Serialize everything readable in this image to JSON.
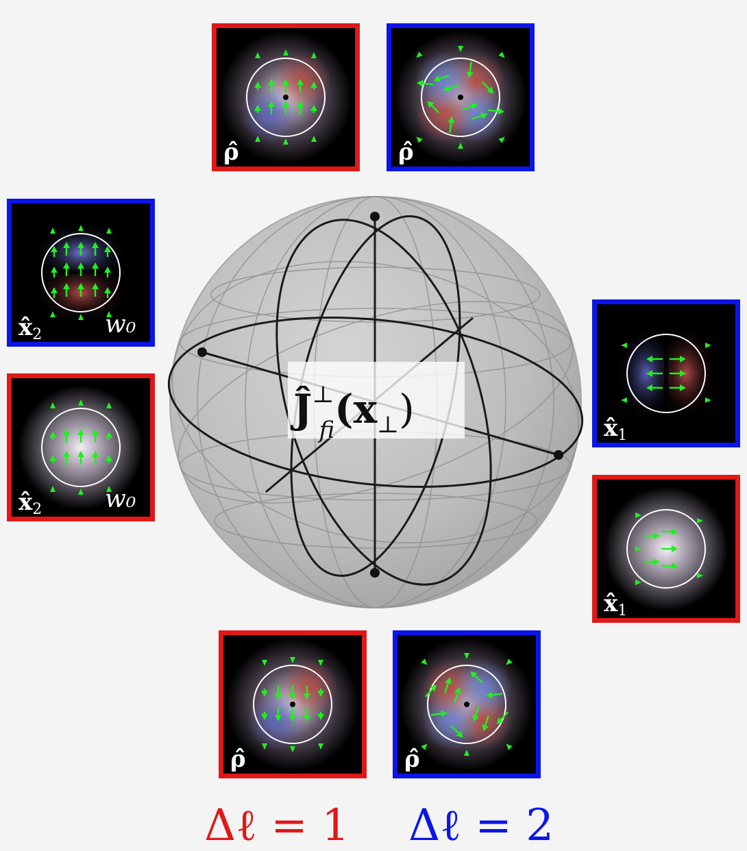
{
  "center_label": {
    "main": "Ĵ",
    "sup": "⊥",
    "sub": "fi",
    "arg_open": "(x",
    "arg_sub": "⊥",
    "arg_close": ")"
  },
  "captions": {
    "delta_l_1": "Δℓ = 1",
    "delta_l_2": "Δℓ = 2"
  },
  "colors": {
    "red": "#e01818",
    "blue": "#0b15e8",
    "arrow": "#22ee22"
  },
  "panels": [
    {
      "id": "top-red",
      "mode": "l1",
      "orient": "up",
      "border": "red",
      "label": "ρ̂",
      "label_sub": "",
      "w0": ""
    },
    {
      "id": "top-blue",
      "mode": "l2",
      "orient": "a",
      "border": "blue",
      "label": "ρ̂",
      "label_sub": "",
      "w0": ""
    },
    {
      "id": "left-blue",
      "mode": "dipole-v",
      "orient": "up",
      "border": "blue",
      "label": "x̂",
      "label_sub": "2",
      "w0": "w₀"
    },
    {
      "id": "left-red",
      "mode": "gauss",
      "orient": "up",
      "border": "red",
      "label": "x̂",
      "label_sub": "2",
      "w0": "w₀"
    },
    {
      "id": "right-blue",
      "mode": "dipole-h",
      "orient": "side",
      "border": "blue",
      "label": "x̂",
      "label_sub": "1",
      "w0": ""
    },
    {
      "id": "right-red",
      "mode": "gauss",
      "orient": "right",
      "border": "red",
      "label": "x̂",
      "label_sub": "1",
      "w0": ""
    },
    {
      "id": "bottom-red",
      "mode": "l1",
      "orient": "down",
      "border": "red",
      "label": "ρ̂",
      "label_sub": "",
      "w0": ""
    },
    {
      "id": "bottom-blue",
      "mode": "l2",
      "orient": "b",
      "border": "blue",
      "label": "ρ̂",
      "label_sub": "",
      "w0": ""
    }
  ]
}
